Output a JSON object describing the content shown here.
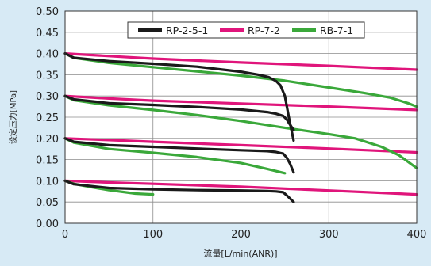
{
  "chart_data": {
    "type": "line",
    "title": "",
    "xlabel": "流量[L/min(ANR)]",
    "ylabel": "设定压力[MPa]",
    "xlim": [
      0,
      400
    ],
    "ylim": [
      0,
      0.5
    ],
    "x_ticks": [
      "0",
      "100",
      "200",
      "300",
      "400"
    ],
    "y_ticks": [
      "0.00",
      "0.05",
      "0.10",
      "0.15",
      "0.20",
      "0.25",
      "0.30",
      "0.35",
      "0.40",
      "0.45",
      "0.50"
    ],
    "grid": true,
    "legend_position": "top",
    "series": [
      {
        "name": "RP-2-5-1",
        "color": "#1a1a1a",
        "curves": [
          {
            "x": [
              0,
              10,
              50,
              100,
              150,
              200,
              220,
              232,
              240,
              245,
              250,
              255,
              260
            ],
            "y": [
              0.4,
              0.39,
              0.382,
              0.376,
              0.369,
              0.357,
              0.35,
              0.344,
              0.335,
              0.325,
              0.3,
              0.245,
              0.195
            ]
          },
          {
            "x": [
              0,
              10,
              50,
              100,
              150,
              200,
              230,
              240,
              248,
              252,
              256,
              260
            ],
            "y": [
              0.3,
              0.292,
              0.283,
              0.279,
              0.274,
              0.268,
              0.262,
              0.258,
              0.253,
              0.245,
              0.232,
              0.22
            ]
          },
          {
            "x": [
              0,
              10,
              50,
              100,
              150,
              200,
              230,
              240,
              248,
              252,
              256,
              260
            ],
            "y": [
              0.2,
              0.192,
              0.184,
              0.18,
              0.176,
              0.172,
              0.17,
              0.168,
              0.164,
              0.155,
              0.14,
              0.12
            ]
          },
          {
            "x": [
              0,
              10,
              50,
              100,
              150,
              200,
              230,
              240,
              248,
              252,
              256,
              260
            ],
            "y": [
              0.1,
              0.092,
              0.083,
              0.08,
              0.078,
              0.077,
              0.076,
              0.075,
              0.073,
              0.066,
              0.058,
              0.05
            ]
          }
        ]
      },
      {
        "name": "RP-7-2",
        "color": "#e0157b",
        "curves": [
          {
            "x": [
              0,
              50,
              100,
              200,
              300,
              400
            ],
            "y": [
              0.4,
              0.394,
              0.388,
              0.379,
              0.371,
              0.362
            ]
          },
          {
            "x": [
              0,
              50,
              100,
              200,
              300,
              400
            ],
            "y": [
              0.3,
              0.294,
              0.289,
              0.282,
              0.275,
              0.267
            ]
          },
          {
            "x": [
              0,
              50,
              100,
              200,
              300,
              400
            ],
            "y": [
              0.2,
              0.196,
              0.192,
              0.184,
              0.176,
              0.167
            ]
          },
          {
            "x": [
              0,
              50,
              100,
              200,
              300,
              400
            ],
            "y": [
              0.1,
              0.096,
              0.093,
              0.086,
              0.077,
              0.068
            ]
          }
        ]
      },
      {
        "name": "RB-7-1",
        "color": "#3aa83a",
        "curves": [
          {
            "x": [
              0,
              10,
              50,
              100,
              150,
              200,
              250,
              300,
              340,
              370,
              390,
              400
            ],
            "y": [
              0.4,
              0.39,
              0.378,
              0.368,
              0.358,
              0.348,
              0.336,
              0.32,
              0.307,
              0.296,
              0.283,
              0.275
            ]
          },
          {
            "x": [
              0,
              10,
              50,
              100,
              150,
              200,
              250,
              300,
              330,
              360,
              380,
              400
            ],
            "y": [
              0.3,
              0.29,
              0.278,
              0.267,
              0.255,
              0.241,
              0.225,
              0.21,
              0.2,
              0.18,
              0.16,
              0.13
            ]
          },
          {
            "x": [
              0,
              10,
              50,
              100,
              150,
              200,
              230,
              250
            ],
            "y": [
              0.2,
              0.19,
              0.175,
              0.166,
              0.156,
              0.142,
              0.128,
              0.118
            ]
          },
          {
            "x": [
              0,
              10,
              30,
              50,
              80,
              100
            ],
            "y": [
              0.1,
              0.093,
              0.085,
              0.078,
              0.07,
              0.068
            ]
          }
        ]
      }
    ]
  }
}
